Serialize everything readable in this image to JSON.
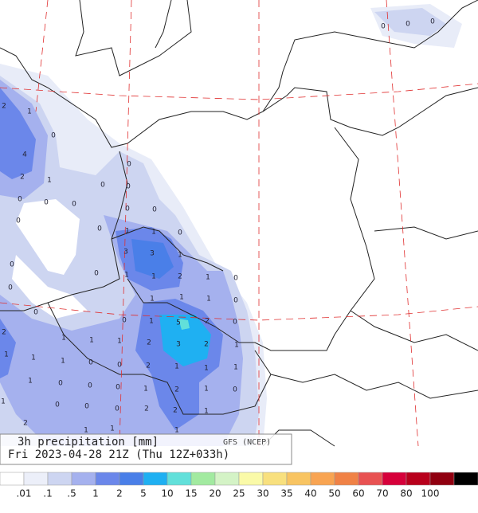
{
  "title": {
    "line1": "3h precipitation  [mm]",
    "source": "GFS (NCEP)",
    "line2": "Fri 2023-04-28 21Z (Thu 12Z+033h)"
  },
  "scale": {
    "colors": [
      "#ffffff",
      "#eceff9",
      "#cdd5f1",
      "#a5b1ee",
      "#6b87ea",
      "#4a7fe8",
      "#1fb0f2",
      "#62e0da",
      "#a2eaa0",
      "#d4f3c6",
      "#fafaa8",
      "#f8e07e",
      "#f8c462",
      "#f8a452",
      "#f08246",
      "#e85252",
      "#d6003a",
      "#b8001c",
      "#900010",
      "#000000"
    ],
    "labels": [
      ".01",
      ".1",
      ".5",
      "1",
      "2",
      "5",
      "10",
      "15",
      "20",
      "25",
      "30",
      "35",
      "40",
      "50",
      "60",
      "70",
      "80",
      "100"
    ]
  },
  "map_labels": [
    "0",
    "0",
    "0",
    "2",
    "1",
    "0",
    "4",
    "2",
    "1",
    "0",
    "0",
    "0",
    "0",
    "0",
    "0",
    "0",
    "0",
    "0",
    "0",
    "1",
    "1",
    "0",
    "3",
    "3",
    "1",
    "0",
    "0",
    "1",
    "1",
    "2",
    "1",
    "0",
    "0",
    "1",
    "1",
    "1",
    "0",
    "0",
    "0",
    "1",
    "5",
    "2",
    "0",
    "2",
    "1",
    "1",
    "1",
    "2",
    "3",
    "2",
    "1",
    "1",
    "1",
    "1",
    "0",
    "0",
    "2",
    "1",
    "1",
    "1",
    "1",
    "0",
    "0",
    "0",
    "1",
    "2",
    "1",
    "0",
    "1",
    "0",
    "0",
    "0",
    "2",
    "2",
    "1",
    "2",
    "1",
    "1",
    "1"
  ]
}
